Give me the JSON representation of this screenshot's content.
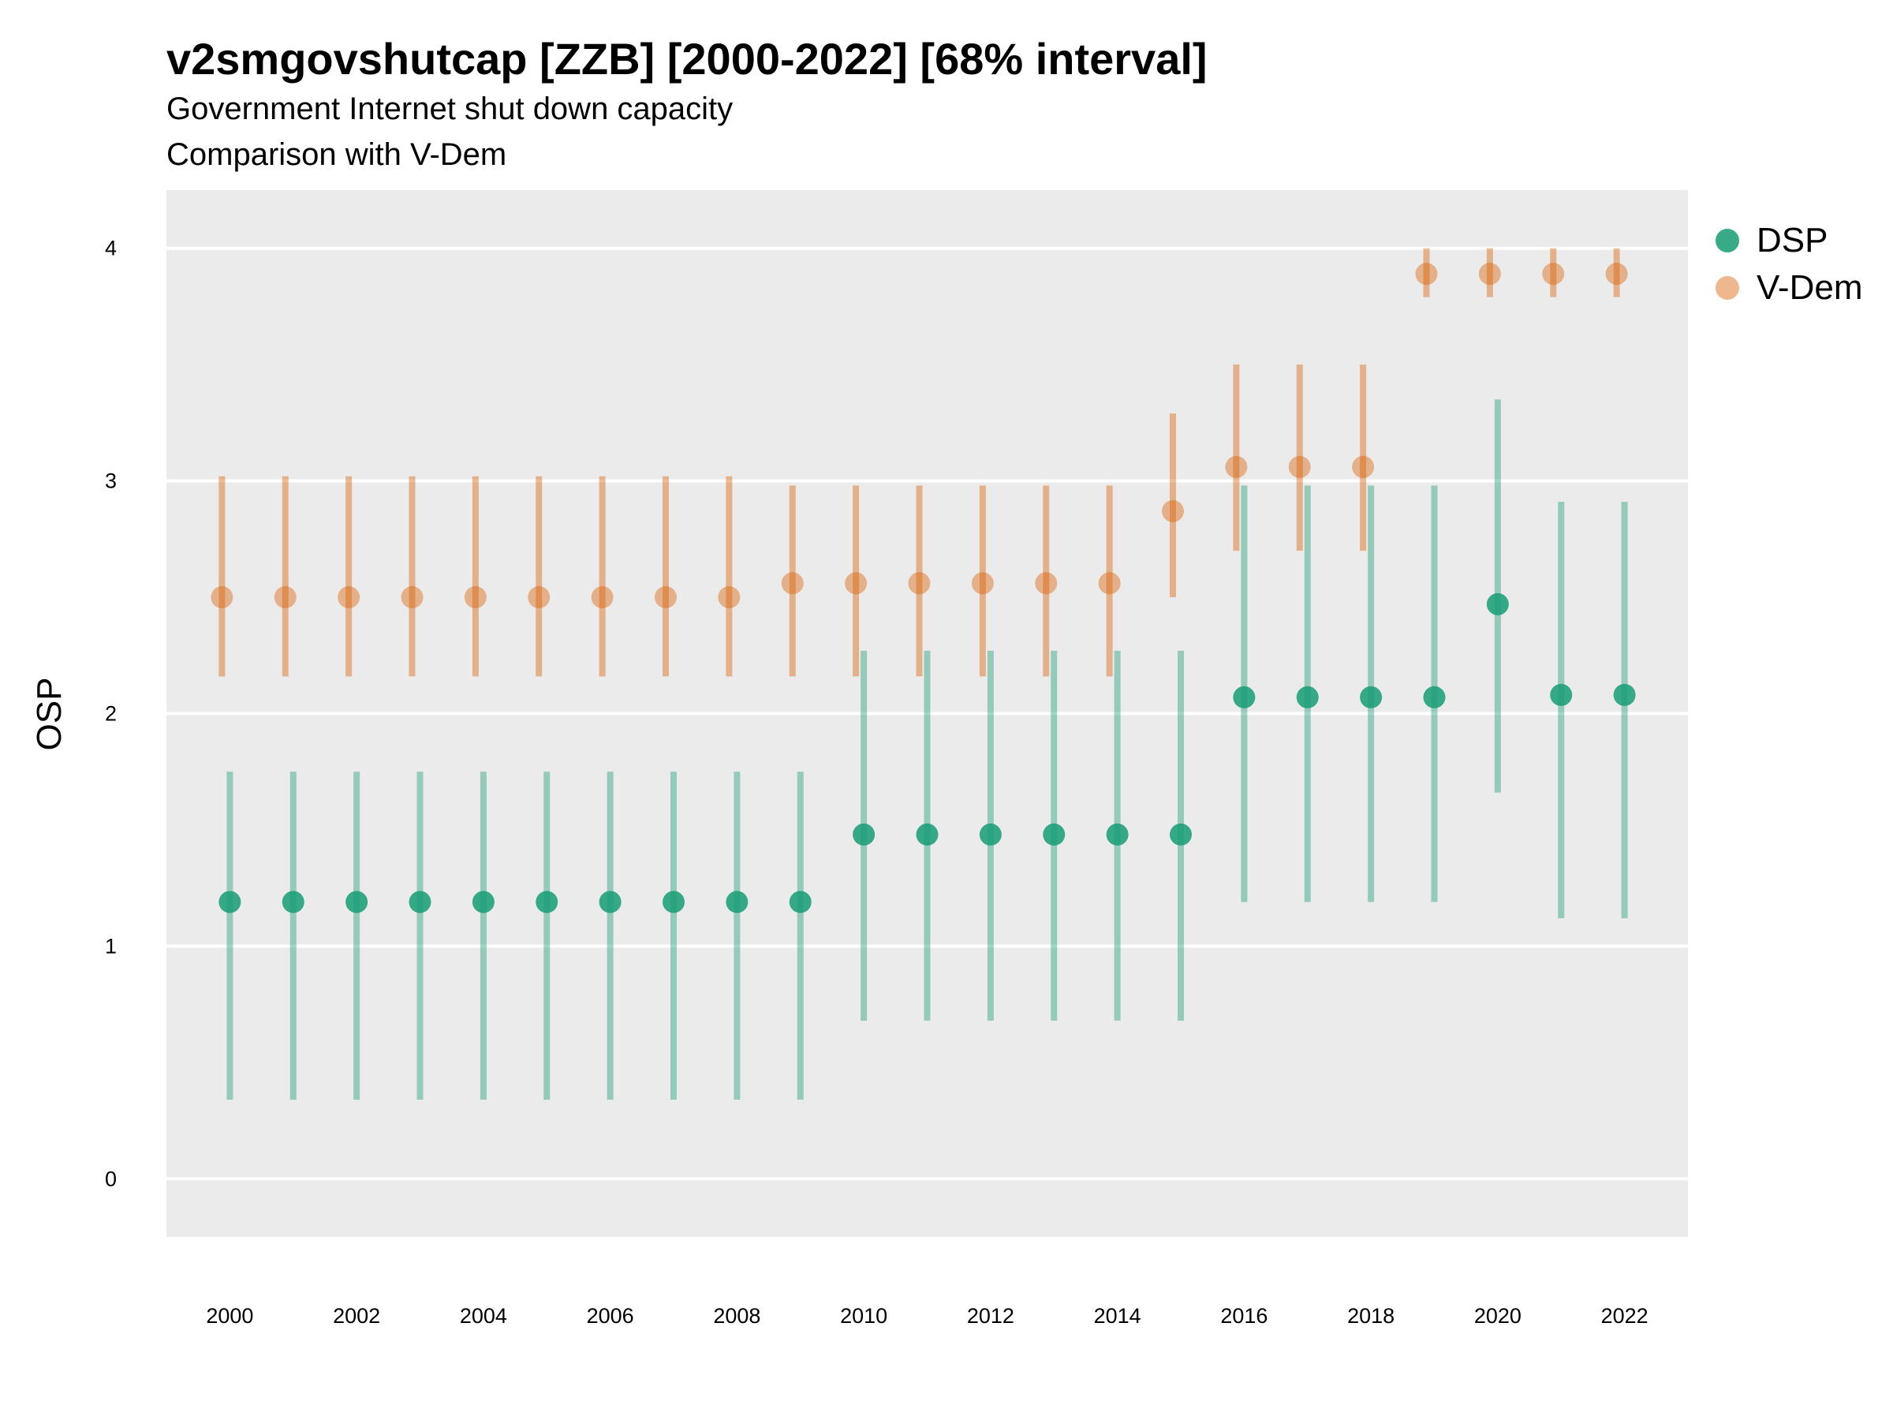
{
  "chart_data": {
    "type": "scatter",
    "title": "v2smgovshutcap [ZZB] [2000-2022] [68% interval]",
    "subtitle": "Government Internet shut down capacity",
    "subtitle2": "Comparison with V-Dem",
    "ylabel": "OSP",
    "xlabel": "",
    "ylim": [
      -0.25,
      4.25
    ],
    "xlim": [
      1999,
      2023
    ],
    "y_ticks": [
      0,
      1,
      2,
      3,
      4
    ],
    "x_ticks": [
      2000,
      2002,
      2004,
      2006,
      2008,
      2010,
      2012,
      2014,
      2016,
      2018,
      2020,
      2022
    ],
    "grid": true,
    "legend_position": "right",
    "x": [
      2000,
      2001,
      2002,
      2003,
      2004,
      2005,
      2006,
      2007,
      2008,
      2009,
      2010,
      2011,
      2012,
      2013,
      2014,
      2015,
      2016,
      2017,
      2018,
      2019,
      2020,
      2021,
      2022
    ],
    "series": [
      {
        "name": "DSP",
        "color": "#1b9e77",
        "values": [
          1.19,
          1.19,
          1.19,
          1.19,
          1.19,
          1.19,
          1.19,
          1.19,
          1.19,
          1.19,
          1.48,
          1.48,
          1.48,
          1.48,
          1.48,
          1.48,
          2.07,
          2.07,
          2.07,
          2.07,
          2.47,
          2.08,
          2.08
        ],
        "lower": [
          0.34,
          0.34,
          0.34,
          0.34,
          0.34,
          0.34,
          0.34,
          0.34,
          0.34,
          0.34,
          0.68,
          0.68,
          0.68,
          0.68,
          0.68,
          0.68,
          1.19,
          1.19,
          1.19,
          1.19,
          1.66,
          1.12,
          1.12
        ],
        "upper": [
          1.75,
          1.75,
          1.75,
          1.75,
          1.75,
          1.75,
          1.75,
          1.75,
          1.75,
          1.75,
          2.27,
          2.27,
          2.27,
          2.27,
          2.27,
          2.27,
          2.98,
          2.98,
          2.98,
          2.98,
          3.35,
          2.91,
          2.91
        ]
      },
      {
        "name": "V-Dem",
        "color": "#d95f02",
        "values": [
          2.5,
          2.5,
          2.5,
          2.5,
          2.5,
          2.5,
          2.5,
          2.5,
          2.5,
          2.56,
          2.56,
          2.56,
          2.56,
          2.56,
          2.56,
          2.87,
          3.06,
          3.06,
          3.06,
          3.89,
          3.89,
          3.89,
          3.89
        ],
        "lower": [
          2.16,
          2.16,
          2.16,
          2.16,
          2.16,
          2.16,
          2.16,
          2.16,
          2.16,
          2.16,
          2.16,
          2.16,
          2.16,
          2.16,
          2.16,
          2.5,
          2.7,
          2.7,
          2.7,
          3.79,
          3.79,
          3.79,
          3.79
        ],
        "upper": [
          3.02,
          3.02,
          3.02,
          3.02,
          3.02,
          3.02,
          3.02,
          3.02,
          3.02,
          2.98,
          2.98,
          2.98,
          2.98,
          2.98,
          2.98,
          3.29,
          3.5,
          3.5,
          3.5,
          4.0,
          4.0,
          4.0,
          4.0
        ]
      }
    ]
  }
}
